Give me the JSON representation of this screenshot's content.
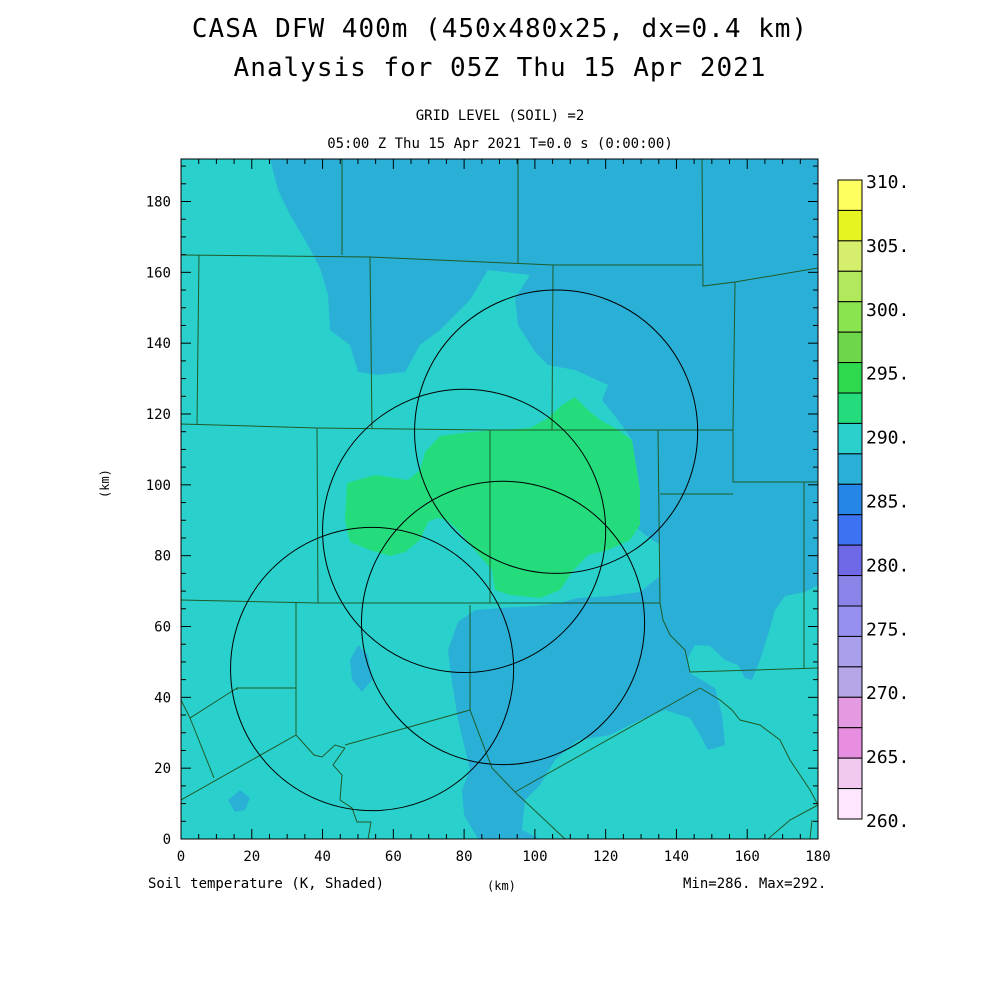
{
  "header": {
    "title_line1": "CASA DFW 400m (450x480x25, dx=0.4 km)",
    "title_line2": "Analysis for 05Z Thu 15 Apr 2021",
    "subtitle_line1": "GRID LEVEL (SOIL) =2",
    "subtitle_line2": "05:00 Z Thu 15 Apr 2021   T=0.0 s (0:00:00)"
  },
  "footer": {
    "field_label": "Soil temperature (K, Shaded)",
    "axis_unit": "(km)",
    "minmax": "Min=286. Max=292."
  },
  "colors": {
    "c285_290": "#2ad1cc",
    "c280_285": "#2ab0d6",
    "c290_295": "#24dc7c"
  },
  "chart_data": {
    "type": "heatmap",
    "title": "CASA DFW 400m (450x480x25, dx=0.4 km)",
    "subtitle": "Analysis for 05Z Thu 15 Apr 2021",
    "xlabel": "(km)",
    "ylabel": "(km)",
    "xlim": [
      0,
      180
    ],
    "ylim": [
      0,
      192
    ],
    "x_ticks": [
      0,
      20,
      40,
      60,
      80,
      100,
      120,
      140,
      160,
      180
    ],
    "y_ticks": [
      0,
      20,
      40,
      60,
      80,
      100,
      120,
      140,
      160,
      180
    ],
    "field": "Soil temperature (K, Shaded)",
    "min": 286,
    "max": 292,
    "colorbar": {
      "labels": [
        "310.",
        "305.",
        "300.",
        "295.",
        "290.",
        "285.",
        "280.",
        "275.",
        "270.",
        "265.",
        "260."
      ],
      "colors": [
        "#ffff60",
        "#e6f522",
        "#d6ee6e",
        "#b2e85c",
        "#8ae450",
        "#6ed64a",
        "#2ed94e",
        "#24dc7c",
        "#2ad1cc",
        "#2ab0d6",
        "#2486e6",
        "#3d72f2",
        "#6e68e6",
        "#8a84e8",
        "#9690f0",
        "#a8a0ea",
        "#b6a6e8",
        "#e49ae0",
        "#e88ee0",
        "#f0c8f0",
        "#ffe6ff"
      ]
    },
    "radar_rings": [
      {
        "center": [
          54,
          48
        ],
        "radius": 40
      },
      {
        "center": [
          80,
          87
        ],
        "radius": 40
      },
      {
        "center": [
          106,
          115
        ],
        "radius": 40
      },
      {
        "center": [
          91,
          61
        ],
        "radius": 40
      }
    ]
  }
}
